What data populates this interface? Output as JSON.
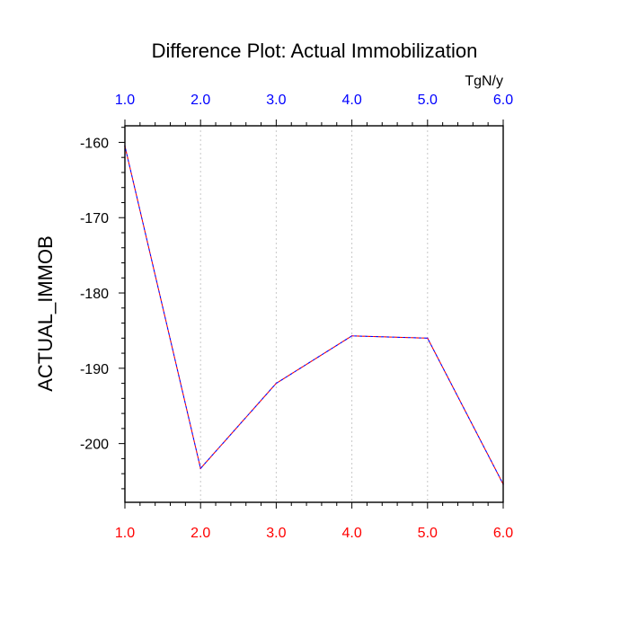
{
  "chart_data": {
    "type": "line",
    "title": "Difference Plot: Actual Immobilization",
    "units": "TgN/y",
    "ylabel": "ACTUAL_IMMOB",
    "xlabel": "",
    "x": [
      1.0,
      2.0,
      3.0,
      4.0,
      5.0,
      6.0
    ],
    "x_tick_labels": [
      "1.0",
      "2.0",
      "3.0",
      "4.0",
      "5.0",
      "6.0"
    ],
    "xlim": [
      1.0,
      6.0
    ],
    "ylim": [
      -207.8,
      -157.8
    ],
    "y_ticks": [
      -160,
      -170,
      -180,
      -190,
      -200
    ],
    "y_tick_labels": [
      "-160",
      "-170",
      "-180",
      "-190",
      "-200"
    ],
    "series": [
      {
        "values": [
          -160.5,
          -203.3,
          -192.0,
          -185.7,
          -186.0,
          -205.4
        ],
        "colors": [
          "#ff0000",
          "#0000ff"
        ],
        "style": "dashed"
      }
    ],
    "grid": "vertical dotted at major x ticks",
    "top_axis_color": "#0000ff",
    "bottom_axis_color": "#ff0000"
  }
}
